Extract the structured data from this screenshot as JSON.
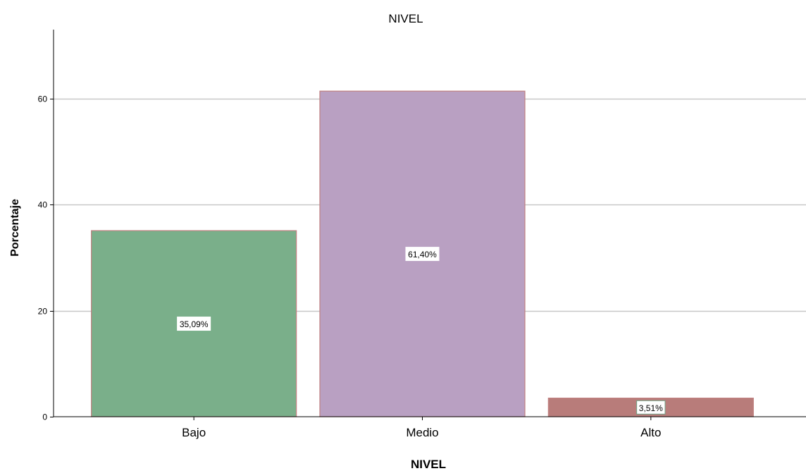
{
  "chart_data": {
    "type": "bar",
    "title": "NIVEL",
    "xlabel": "NIVEL",
    "ylabel": "Porcentaje",
    "categories": [
      "Bajo",
      "Medio",
      "Alto"
    ],
    "values": [
      35.09,
      61.4,
      3.51
    ],
    "data_labels": [
      "35,09%",
      "61,40%",
      "3,51%"
    ],
    "ylim": [
      0,
      73
    ],
    "yticks": [
      0,
      20,
      40,
      60
    ],
    "ytick_labels": [
      "0",
      "20",
      "40",
      "60"
    ],
    "grid": true,
    "legend": "none",
    "colors": {
      "bars": [
        "#7aaf8a",
        "#b9a0c2",
        "#b87c7a"
      ],
      "bar_border": "#c08080",
      "gridline": "#c8c8c8",
      "axis": "#000000",
      "label_border": [
        "#ffffff",
        "#ffffff",
        "#6fa387"
      ]
    }
  }
}
